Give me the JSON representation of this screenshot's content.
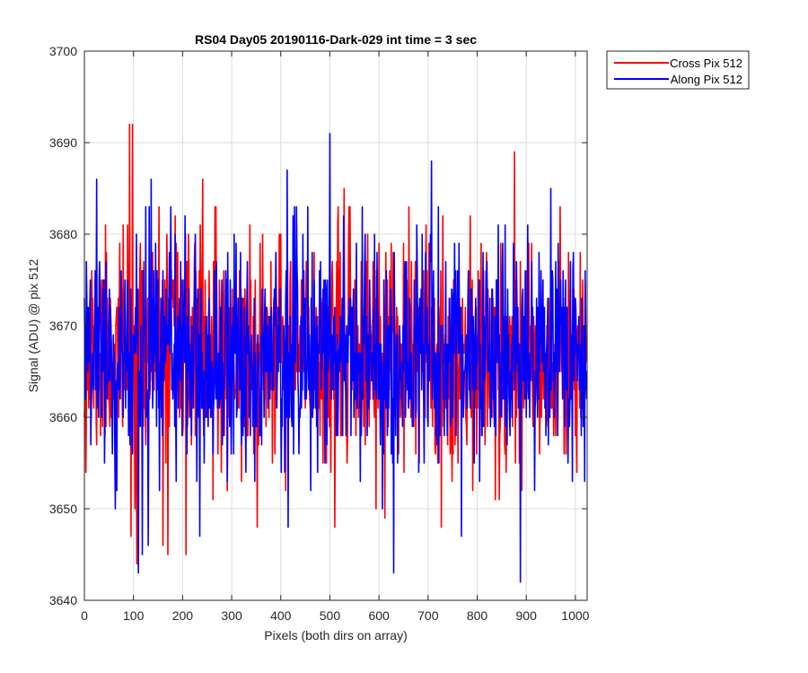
{
  "chart_data": {
    "type": "line",
    "title": "RS04 Day05 20190116-Dark-029 int time = 3 sec",
    "xlabel": "Pixels (both dirs on array)",
    "ylabel": "Signal (ADU) @ pix 512",
    "xlim": [
      0,
      1024
    ],
    "ylim": [
      3640,
      3700
    ],
    "xticks": [
      0,
      100,
      200,
      300,
      400,
      500,
      600,
      700,
      800,
      900,
      1000
    ],
    "yticks": [
      3640,
      3650,
      3660,
      3670,
      3680,
      3690,
      3700
    ],
    "grid": true,
    "legend_position": "outside-top-right",
    "noise_model": "Approximately normal noise about a mean of ~3667 ADU (std ~6 ADU), one sample per pixel 0-1023; intermediate samples are not individually readable and are regenerated from this model, with the notable extremes pinned below.",
    "series": [
      {
        "name": "Cross Pix 512",
        "color": "#ff0000",
        "n_points": 1024,
        "mean": 3667,
        "std": 6,
        "seed": 11,
        "notable_points": [
          {
            "x": 92,
            "y": 3692
          },
          {
            "x": 98,
            "y": 3692
          },
          {
            "x": 241,
            "y": 3686
          },
          {
            "x": 876,
            "y": 3689
          },
          {
            "x": 529,
            "y": 3685
          },
          {
            "x": 107,
            "y": 3644
          },
          {
            "x": 170,
            "y": 3645
          },
          {
            "x": 207,
            "y": 3645
          },
          {
            "x": 95,
            "y": 3647
          },
          {
            "x": 160,
            "y": 3646
          },
          {
            "x": 352,
            "y": 3648
          },
          {
            "x": 510,
            "y": 3648
          },
          {
            "x": 727,
            "y": 3648
          },
          {
            "x": 612,
            "y": 3649
          },
          {
            "x": 845,
            "y": 3651
          }
        ]
      },
      {
        "name": "Along Pix 512",
        "color": "#0000ff",
        "n_points": 1024,
        "mean": 3667,
        "std": 6,
        "seed": 29,
        "notable_points": [
          {
            "x": 25,
            "y": 3686
          },
          {
            "x": 500,
            "y": 3691
          },
          {
            "x": 413,
            "y": 3687
          },
          {
            "x": 707,
            "y": 3688
          },
          {
            "x": 950,
            "y": 3685
          },
          {
            "x": 136,
            "y": 3686
          },
          {
            "x": 888,
            "y": 3642
          },
          {
            "x": 630,
            "y": 3643
          },
          {
            "x": 110,
            "y": 3643
          },
          {
            "x": 118,
            "y": 3645
          },
          {
            "x": 235,
            "y": 3647
          },
          {
            "x": 415,
            "y": 3648
          },
          {
            "x": 768,
            "y": 3647
          },
          {
            "x": 130,
            "y": 3646
          }
        ]
      }
    ]
  }
}
